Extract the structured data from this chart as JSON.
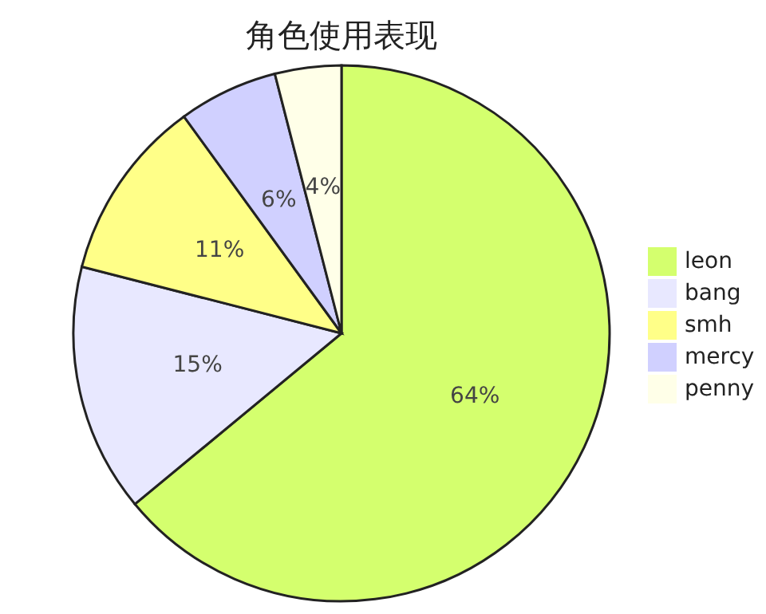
{
  "chart_data": {
    "type": "pie",
    "title": "角色使用表现",
    "categories": [
      "leon",
      "bang",
      "smh",
      "mercy",
      "penny"
    ],
    "values": [
      64,
      15,
      11,
      6,
      4
    ],
    "colors": [
      "#d4ff6e",
      "#e8e8ff",
      "#ffff88",
      "#d0d0ff",
      "#ffffe8"
    ],
    "value_labels": [
      "64%",
      "15%",
      "11%",
      "6%",
      "4%"
    ],
    "legend": "right"
  }
}
